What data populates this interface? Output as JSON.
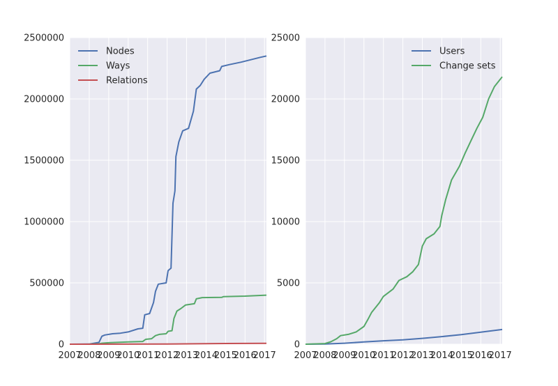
{
  "colors": {
    "plot_bg": "#EAEAF2",
    "grid": "#FFFFFF",
    "blue": "#4C72B0",
    "green": "#55A868",
    "red": "#C44E52",
    "text": "#262626"
  },
  "chart_data": [
    {
      "type": "line",
      "title": "",
      "xlabel": "",
      "ylabel": "",
      "xlim": [
        2007,
        2017.1
      ],
      "ylim": [
        0,
        2500000
      ],
      "x_ticks": [
        "2007",
        "2008",
        "2009",
        "2010",
        "2011",
        "2012",
        "2013",
        "2014",
        "2015",
        "2016",
        "2017"
      ],
      "y_ticks": [
        "0",
        "500000",
        "1000000",
        "1500000",
        "2000000",
        "2500000"
      ],
      "grid": true,
      "legend": "top-left",
      "series": [
        {
          "name": "Nodes",
          "color": "#4C72B0",
          "points": [
            [
              2007.0,
              0
            ],
            [
              2008.0,
              1000
            ],
            [
              2008.5,
              15000
            ],
            [
              2008.65,
              65000
            ],
            [
              2008.8,
              75000
            ],
            [
              2009.2,
              85000
            ],
            [
              2009.6,
              90000
            ],
            [
              2010.0,
              100000
            ],
            [
              2010.5,
              125000
            ],
            [
              2010.75,
              130000
            ],
            [
              2010.85,
              240000
            ],
            [
              2011.1,
              250000
            ],
            [
              2011.3,
              340000
            ],
            [
              2011.4,
              430000
            ],
            [
              2011.55,
              490000
            ],
            [
              2011.95,
              500000
            ],
            [
              2012.05,
              600000
            ],
            [
              2012.2,
              620000
            ],
            [
              2012.3,
              1150000
            ],
            [
              2012.4,
              1250000
            ],
            [
              2012.45,
              1530000
            ],
            [
              2012.6,
              1650000
            ],
            [
              2012.8,
              1740000
            ],
            [
              2013.1,
              1760000
            ],
            [
              2013.35,
              1900000
            ],
            [
              2013.5,
              2080000
            ],
            [
              2013.7,
              2110000
            ],
            [
              2013.9,
              2160000
            ],
            [
              2014.2,
              2210000
            ],
            [
              2014.7,
              2230000
            ],
            [
              2014.8,
              2265000
            ],
            [
              2015.2,
              2280000
            ],
            [
              2015.8,
              2300000
            ],
            [
              2016.3,
              2320000
            ],
            [
              2016.8,
              2340000
            ],
            [
              2017.1,
              2350000
            ]
          ]
        },
        {
          "name": "Ways",
          "color": "#55A868",
          "points": [
            [
              2007.0,
              0
            ],
            [
              2008.0,
              500
            ],
            [
              2008.5,
              3000
            ],
            [
              2008.65,
              8000
            ],
            [
              2009.0,
              12000
            ],
            [
              2010.0,
              18000
            ],
            [
              2010.75,
              22000
            ],
            [
              2010.9,
              40000
            ],
            [
              2011.2,
              45000
            ],
            [
              2011.4,
              70000
            ],
            [
              2011.6,
              80000
            ],
            [
              2011.95,
              85000
            ],
            [
              2012.05,
              105000
            ],
            [
              2012.25,
              110000
            ],
            [
              2012.35,
              210000
            ],
            [
              2012.5,
              270000
            ],
            [
              2012.7,
              290000
            ],
            [
              2012.95,
              320000
            ],
            [
              2013.4,
              330000
            ],
            [
              2013.5,
              370000
            ],
            [
              2013.8,
              380000
            ],
            [
              2014.8,
              382000
            ],
            [
              2014.9,
              388000
            ],
            [
              2016.0,
              392000
            ],
            [
              2017.1,
              400000
            ]
          ]
        },
        {
          "name": "Relations",
          "color": "#C44E52",
          "points": [
            [
              2007.0,
              0
            ],
            [
              2010.0,
              500
            ],
            [
              2012.0,
              1500
            ],
            [
              2013.0,
              3000
            ],
            [
              2014.0,
              4500
            ],
            [
              2015.0,
              5500
            ],
            [
              2016.0,
              6500
            ],
            [
              2017.1,
              7500
            ]
          ]
        }
      ]
    },
    {
      "type": "line",
      "title": "",
      "xlabel": "",
      "ylabel": "",
      "xlim": [
        2007,
        2017.1
      ],
      "ylim": [
        0,
        25000
      ],
      "x_ticks": [
        "2007",
        "2008",
        "2009",
        "2010",
        "2011",
        "2012",
        "2013",
        "2014",
        "2015",
        "2016",
        "2017"
      ],
      "y_ticks": [
        "0",
        "5000",
        "10000",
        "15000",
        "20000",
        "25000"
      ],
      "grid": true,
      "legend": "top-right",
      "series": [
        {
          "name": "Users",
          "color": "#4C72B0",
          "points": [
            [
              2007.0,
              0
            ],
            [
              2008.0,
              10
            ],
            [
              2009.0,
              80
            ],
            [
              2010.0,
              180
            ],
            [
              2011.0,
              280
            ],
            [
              2012.0,
              350
            ],
            [
              2013.0,
              480
            ],
            [
              2014.0,
              620
            ],
            [
              2015.0,
              780
            ],
            [
              2016.0,
              980
            ],
            [
              2017.1,
              1200
            ]
          ]
        },
        {
          "name": "Change sets",
          "color": "#55A868",
          "points": [
            [
              2007.0,
              0
            ],
            [
              2008.0,
              50
            ],
            [
              2008.3,
              200
            ],
            [
              2008.6,
              450
            ],
            [
              2008.8,
              700
            ],
            [
              2009.2,
              800
            ],
            [
              2009.6,
              1000
            ],
            [
              2010.0,
              1450
            ],
            [
              2010.2,
              2000
            ],
            [
              2010.4,
              2600
            ],
            [
              2010.8,
              3400
            ],
            [
              2011.0,
              3900
            ],
            [
              2011.5,
              4500
            ],
            [
              2011.8,
              5200
            ],
            [
              2012.2,
              5500
            ],
            [
              2012.5,
              5900
            ],
            [
              2012.8,
              6500
            ],
            [
              2013.0,
              8000
            ],
            [
              2013.2,
              8600
            ],
            [
              2013.6,
              9000
            ],
            [
              2013.9,
              9600
            ],
            [
              2014.0,
              10500
            ],
            [
              2014.2,
              11800
            ],
            [
              2014.5,
              13400
            ],
            [
              2014.9,
              14500
            ],
            [
              2015.2,
              15600
            ],
            [
              2015.5,
              16600
            ],
            [
              2015.8,
              17600
            ],
            [
              2016.1,
              18500
            ],
            [
              2016.4,
              20000
            ],
            [
              2016.7,
              21000
            ],
            [
              2017.1,
              21800
            ]
          ]
        }
      ]
    }
  ]
}
